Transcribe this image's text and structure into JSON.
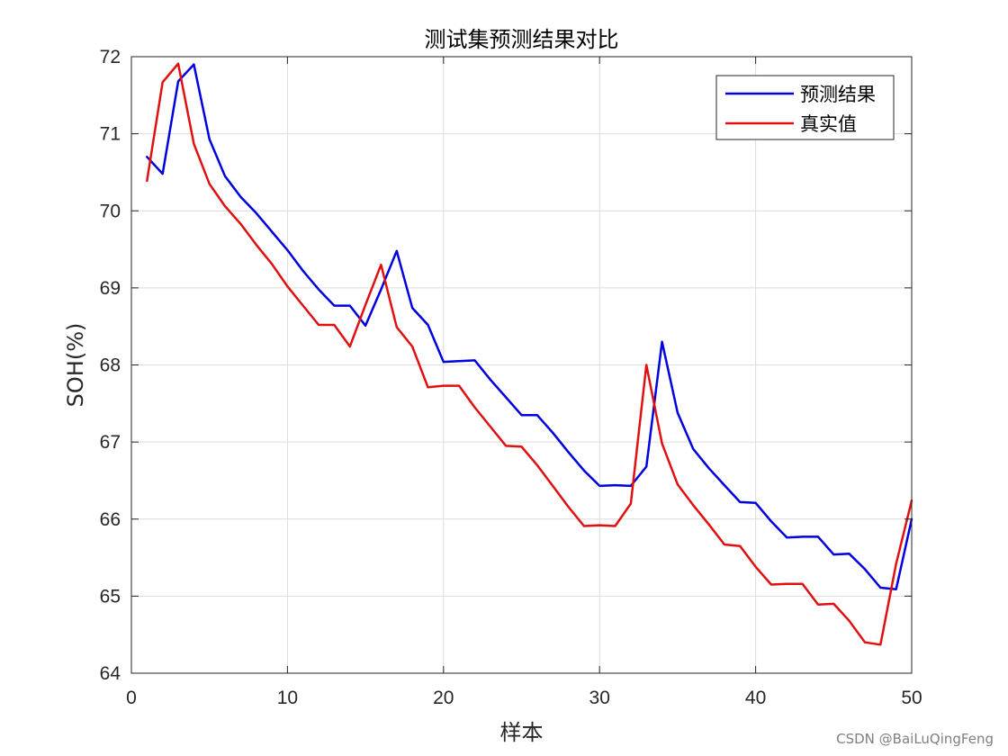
{
  "chart_data": {
    "type": "line",
    "title": "测试集预测结果对比",
    "xlabel": "样本",
    "ylabel": "SOH(%)",
    "xlim": [
      0,
      50
    ],
    "ylim": [
      64,
      72
    ],
    "xticks": [
      0,
      10,
      20,
      30,
      40,
      50
    ],
    "yticks": [
      64,
      65,
      66,
      67,
      68,
      69,
      70,
      71,
      72
    ],
    "grid": true,
    "legend_position": "top-right",
    "x": [
      1,
      2,
      3,
      4,
      5,
      6,
      7,
      8,
      9,
      10,
      11,
      12,
      13,
      14,
      15,
      16,
      17,
      18,
      19,
      20,
      21,
      22,
      23,
      24,
      25,
      26,
      27,
      28,
      29,
      30,
      31,
      32,
      33,
      34,
      35,
      36,
      37,
      38,
      39,
      40,
      41,
      42,
      43,
      44,
      45,
      46,
      47,
      48,
      49,
      50
    ],
    "series": [
      {
        "name": "预测结果",
        "color": "#0000e0",
        "values": [
          70.7,
          70.48,
          71.68,
          71.9,
          70.93,
          70.45,
          70.18,
          69.97,
          69.73,
          69.49,
          69.22,
          68.98,
          68.77,
          68.77,
          68.51,
          68.98,
          69.48,
          68.74,
          68.52,
          68.04,
          68.05,
          68.06,
          67.81,
          67.58,
          67.35,
          67.35,
          67.12,
          66.87,
          66.63,
          66.43,
          66.44,
          66.43,
          66.68,
          68.3,
          67.38,
          66.91,
          66.66,
          66.44,
          66.22,
          66.21,
          65.97,
          65.76,
          65.77,
          65.77,
          65.54,
          65.55,
          65.35,
          65.11,
          65.09,
          66.0
        ]
      },
      {
        "name": "真实值",
        "color": "#e01010",
        "values": [
          70.39,
          71.67,
          71.91,
          70.87,
          70.35,
          70.06,
          69.83,
          69.56,
          69.31,
          69.02,
          68.77,
          68.52,
          68.52,
          68.24,
          68.78,
          69.3,
          68.49,
          68.24,
          67.71,
          67.73,
          67.73,
          67.45,
          67.2,
          66.95,
          66.94,
          66.7,
          66.43,
          66.16,
          65.91,
          65.92,
          65.91,
          66.2,
          68.0,
          66.98,
          66.45,
          66.18,
          65.93,
          65.67,
          65.65,
          65.38,
          65.15,
          65.16,
          65.16,
          64.89,
          64.9,
          64.68,
          64.4,
          64.37,
          65.42,
          66.24
        ]
      }
    ]
  },
  "watermark": "CSDN @BaiLuQingFeng"
}
